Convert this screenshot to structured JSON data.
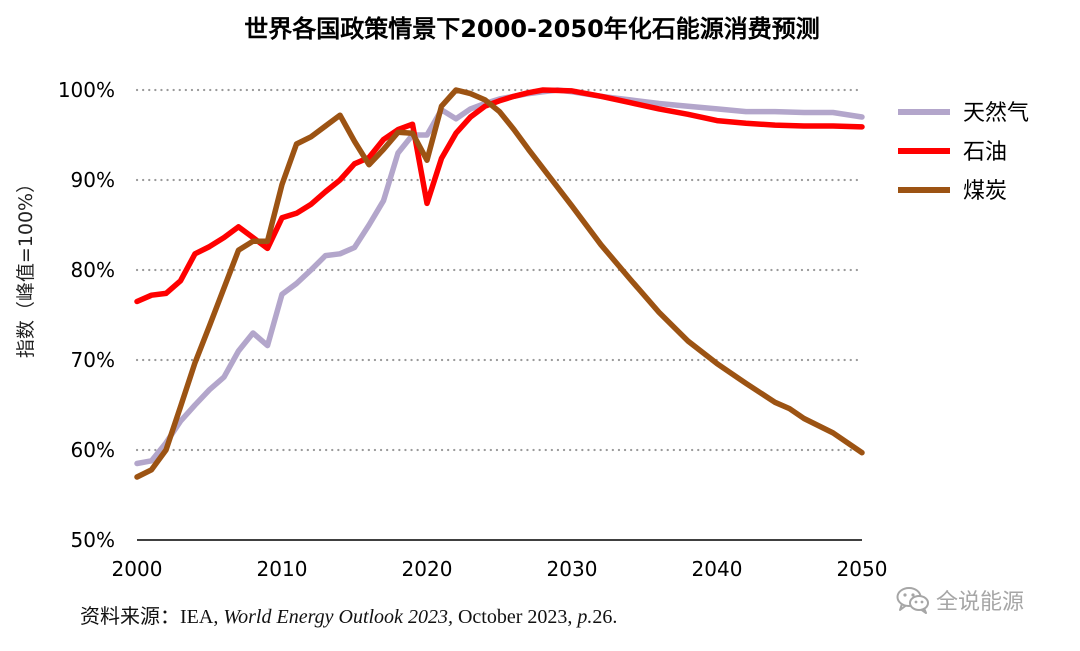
{
  "chart_data": {
    "type": "line",
    "title": "世界各国政策情景下2000-2050年化石能源消费预测",
    "ylabel": "指数（峰值=100%）",
    "xlabel": "",
    "xlim": [
      2000,
      2050
    ],
    "ylim": [
      50,
      100
    ],
    "x_ticks": [
      2000,
      2010,
      2020,
      2030,
      2040,
      2050
    ],
    "x_tick_labels": [
      "2000",
      "2010",
      "2020",
      "2030",
      "2040",
      "2050"
    ],
    "y_ticks": [
      50,
      60,
      70,
      80,
      90,
      100
    ],
    "y_tick_labels": [
      "50%",
      "60%",
      "70%",
      "80%",
      "90%",
      "100%"
    ],
    "grid": "horizontal dotted",
    "legend_position": "right",
    "series": [
      {
        "name": "天然气",
        "color": "#b3a6cb",
        "x": [
          2000,
          2001,
          2002,
          2003,
          2004,
          2005,
          2006,
          2007,
          2008,
          2009,
          2010,
          2011,
          2012,
          2013,
          2014,
          2015,
          2016,
          2017,
          2018,
          2019,
          2020,
          2021,
          2022,
          2023,
          2024,
          2025,
          2026,
          2027,
          2028,
          2029,
          2030,
          2032,
          2034,
          2036,
          2038,
          2040,
          2042,
          2044,
          2046,
          2048,
          2050
        ],
        "y": [
          58.5,
          58.8,
          60.8,
          63.2,
          65.0,
          66.7,
          68.1,
          71.0,
          73.0,
          71.6,
          77.3,
          78.5,
          80.0,
          81.6,
          81.8,
          82.5,
          85.0,
          87.7,
          93.0,
          95.0,
          95.0,
          97.8,
          96.8,
          97.9,
          98.5,
          99.0,
          99.3,
          99.6,
          99.8,
          100.0,
          99.8,
          99.3,
          98.9,
          98.5,
          98.2,
          97.9,
          97.6,
          97.6,
          97.5,
          97.5,
          97.0
        ]
      },
      {
        "name": "石油",
        "color": "#ff0000",
        "x": [
          2000,
          2001,
          2002,
          2003,
          2004,
          2005,
          2006,
          2007,
          2008,
          2009,
          2010,
          2011,
          2012,
          2013,
          2014,
          2015,
          2016,
          2017,
          2018,
          2019,
          2020,
          2021,
          2022,
          2023,
          2024,
          2025,
          2026,
          2027,
          2028,
          2030,
          2032,
          2034,
          2036,
          2038,
          2040,
          2042,
          2044,
          2046,
          2048,
          2050
        ],
        "y": [
          76.5,
          77.2,
          77.4,
          78.8,
          81.8,
          82.6,
          83.6,
          84.8,
          83.6,
          82.4,
          85.8,
          86.3,
          87.3,
          88.7,
          90.0,
          91.8,
          92.5,
          94.5,
          95.6,
          96.2,
          87.4,
          92.4,
          95.2,
          97.0,
          98.2,
          98.8,
          99.3,
          99.7,
          100.0,
          99.9,
          99.3,
          98.6,
          97.9,
          97.3,
          96.6,
          96.3,
          96.1,
          96.0,
          96.0,
          95.9
        ]
      },
      {
        "name": "煤炭",
        "color": "#9c5313",
        "x": [
          2000,
          2001,
          2002,
          2003,
          2004,
          2005,
          2006,
          2007,
          2008,
          2009,
          2010,
          2011,
          2012,
          2013,
          2014,
          2015,
          2016,
          2017,
          2018,
          2019,
          2020,
          2021,
          2022,
          2023,
          2024,
          2025,
          2026,
          2027,
          2028,
          2030,
          2032,
          2034,
          2036,
          2038,
          2040,
          2042,
          2044,
          2045,
          2046,
          2048,
          2050
        ],
        "y": [
          57.0,
          57.8,
          60.0,
          64.8,
          69.7,
          73.8,
          78.0,
          82.2,
          83.2,
          83.2,
          89.5,
          94.0,
          94.8,
          96.0,
          97.2,
          94.3,
          91.7,
          93.4,
          95.3,
          95.2,
          92.2,
          98.2,
          100.0,
          99.6,
          98.9,
          97.6,
          95.6,
          93.4,
          91.3,
          87.1,
          82.8,
          79.0,
          75.3,
          72.1,
          69.6,
          67.4,
          65.3,
          64.6,
          63.5,
          61.9,
          59.7
        ]
      }
    ]
  },
  "source": {
    "prefix": "资料来源：IEA, ",
    "italic1": "World Energy Outlook 2023,",
    "middle": " October 2023, ",
    "italic2": "p.",
    "suffix": "26."
  },
  "watermark": {
    "icon": "wechat-icon",
    "text": "全说能源"
  }
}
